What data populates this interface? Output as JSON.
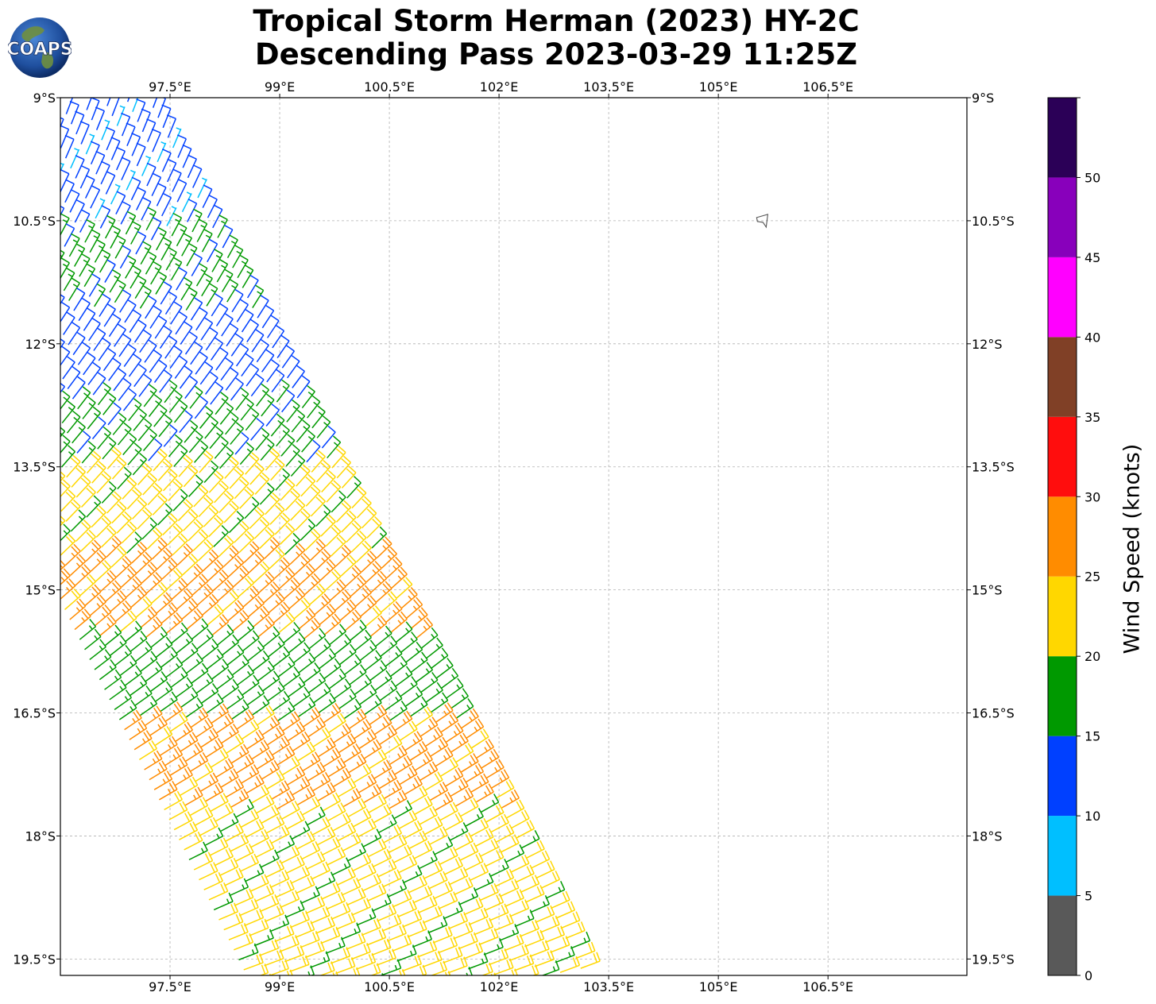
{
  "header": {
    "title_line1": "Tropical Storm Herman (2023) HY-2C",
    "title_line2": "Descending Pass 2023-03-29 11:25Z",
    "logo_text": "COAPS"
  },
  "map": {
    "lon_range": [
      96.0,
      108.4
    ],
    "lat_range": [
      -19.7,
      -9.0
    ],
    "lon_ticks": [
      97.5,
      99,
      100.5,
      102,
      103.5,
      105,
      106.5
    ],
    "lon_tick_labels": [
      "97.5°E",
      "99°E",
      "100.5°E",
      "102°E",
      "103.5°E",
      "105°E",
      "106.5°E"
    ],
    "lat_ticks": [
      -9,
      -10.5,
      -12,
      -13.5,
      -15,
      -16.5,
      -18,
      -19.5
    ],
    "lat_tick_labels": [
      "9°S",
      "10.5°S",
      "12°S",
      "13.5°S",
      "15°S",
      "16.5°S",
      "18°S",
      "19.5°S"
    ],
    "grid": true,
    "island": {
      "name_icon": "island-outline-icon",
      "lon": 105.6,
      "lat": -10.5
    },
    "swath": {
      "rows": 88,
      "columns": 16,
      "row_lat_start": -9.0,
      "row_lat_step": -0.122,
      "col_lat_step": -0.05,
      "inner_edge_lon_start": 97.2,
      "inner_edge_lon_step": 0.068,
      "col_lon_step": -0.28
    },
    "wind_zones": [
      {
        "lat_max": -9.0,
        "lat_min": -10.6,
        "speed_kt": 12
      },
      {
        "lat_max": -10.6,
        "lat_min": -11.6,
        "speed_kt": 17
      },
      {
        "lat_max": -11.6,
        "lat_min": -12.7,
        "speed_kt": 13
      },
      {
        "lat_max": -12.7,
        "lat_min": -13.5,
        "speed_kt": 17
      },
      {
        "lat_max": -13.5,
        "lat_min": -14.6,
        "speed_kt": 22
      },
      {
        "lat_max": -14.6,
        "lat_min": -15.6,
        "speed_kt": 26
      },
      {
        "lat_max": -15.6,
        "lat_min": -16.6,
        "speed_kt": 18
      },
      {
        "lat_max": -16.6,
        "lat_min": -17.7,
        "speed_kt": 27
      },
      {
        "lat_max": -17.7,
        "lat_min": -19.7,
        "speed_kt": 22
      }
    ]
  },
  "colorbar": {
    "title": "Wind Speed (knots)",
    "bins": [
      {
        "min": 0,
        "max": 5,
        "color": "#595959"
      },
      {
        "min": 5,
        "max": 10,
        "color": "#00bfff"
      },
      {
        "min": 10,
        "max": 15,
        "color": "#0040ff"
      },
      {
        "min": 15,
        "max": 20,
        "color": "#009900"
      },
      {
        "min": 20,
        "max": 25,
        "color": "#ffd700"
      },
      {
        "min": 25,
        "max": 30,
        "color": "#ff8c00"
      },
      {
        "min": 30,
        "max": 35,
        "color": "#ff0d0d"
      },
      {
        "min": 35,
        "max": 40,
        "color": "#804026"
      },
      {
        "min": 40,
        "max": 45,
        "color": "#ff00ff"
      },
      {
        "min": 45,
        "max": 50,
        "color": "#8800bb"
      },
      {
        "min": 50,
        "max": 55,
        "color": "#2b0057"
      }
    ],
    "tick_labels": [
      "0",
      "5",
      "10",
      "15",
      "20",
      "25",
      "30",
      "35",
      "40",
      "45",
      "50"
    ]
  }
}
